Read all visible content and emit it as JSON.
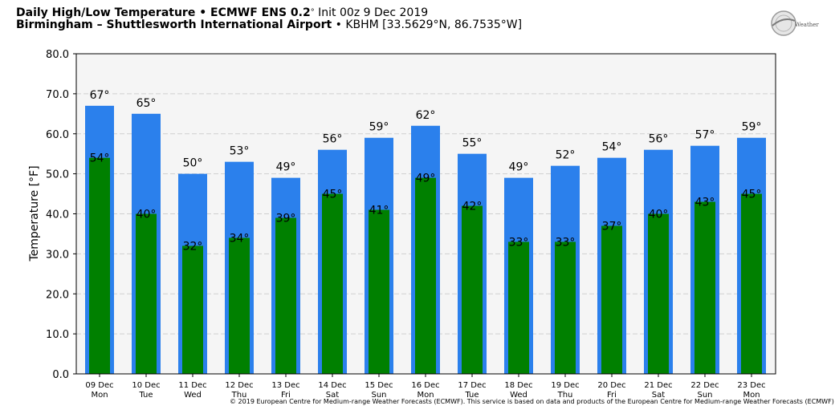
{
  "header": {
    "title_bold": "Daily High/Low Temperature • ECMWF ENS 0.2",
    "title_deg": "°",
    "init": " Init 00z 9 Dec 2019",
    "location_bold": "Birmingham – Shuttlesworth International Airport",
    "station": " • KBHM [33.5629°N, 86.7535°W]"
  },
  "logo": {
    "text": "WeatherBELL"
  },
  "copyright": "© 2019 European Centre for Medium-range Weather Forecasts (ECMWF). This service is based on data and products of the European Centre for Medium-range Weather Forecasts (ECMWF)",
  "colors": {
    "high": "#2b80ec",
    "low": "#008000",
    "plot_bg": "#f5f5f5",
    "grid": "#cfcfcf"
  },
  "chart_data": {
    "type": "bar",
    "title": "Daily High/Low Temperature • ECMWF ENS 0.2° Init 00z 9 Dec 2019",
    "ylabel": "Temperature [°F]",
    "xlabel": "",
    "ylim": [
      0,
      80
    ],
    "yticks": [
      "0.0",
      "10.0",
      "20.0",
      "30.0",
      "40.0",
      "50.0",
      "60.0",
      "70.0",
      "80.0"
    ],
    "grid": true,
    "categories": [
      "09 Dec",
      "10 Dec",
      "11 Dec",
      "12 Dec",
      "13 Dec",
      "14 Dec",
      "15 Dec",
      "16 Dec",
      "17 Dec",
      "18 Dec",
      "19 Dec",
      "20 Dec",
      "21 Dec",
      "22 Dec",
      "23 Dec"
    ],
    "weekdays": [
      "Mon",
      "Tue",
      "Wed",
      "Thu",
      "Fri",
      "Sat",
      "Sun",
      "Mon",
      "Tue",
      "Wed",
      "Thu",
      "Fri",
      "Sat",
      "Sun",
      "Mon"
    ],
    "series": [
      {
        "values": [
          67,
          65,
          50,
          53,
          49,
          56,
          59,
          62,
          55,
          49,
          52,
          54,
          56,
          57,
          59
        ],
        "labels": [
          "67°",
          "65°",
          "50°",
          "53°",
          "49°",
          "56°",
          "59°",
          "62°",
          "55°",
          "49°",
          "52°",
          "54°",
          "56°",
          "57°",
          "59°"
        ]
      },
      {
        "values": [
          54,
          40,
          32,
          34,
          39,
          45,
          41,
          49,
          42,
          33,
          33,
          37,
          40,
          43,
          45
        ],
        "labels": [
          "54°",
          "40°",
          "32°",
          "34°",
          "39°",
          "45°",
          "41°",
          "49°",
          "42°",
          "33°",
          "33°",
          "37°",
          "40°",
          "43°",
          "45°"
        ]
      }
    ]
  }
}
